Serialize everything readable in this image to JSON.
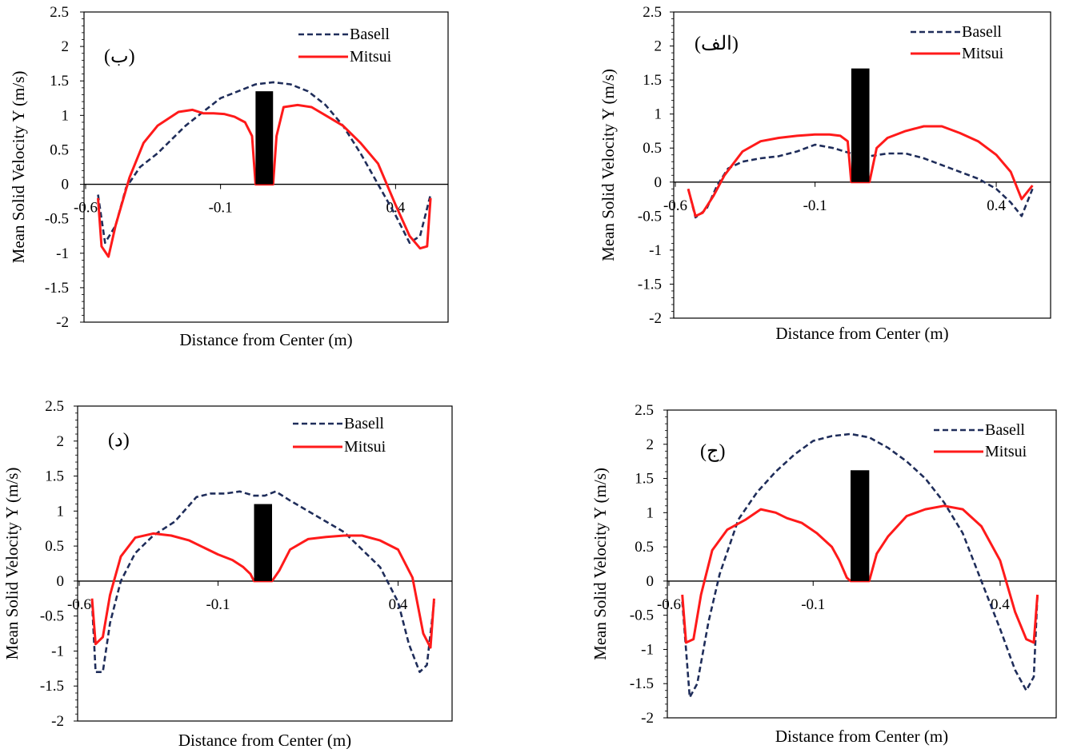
{
  "chart_data": [
    {
      "type": "line",
      "panel_label": "(ب)",
      "xlabel": "Distance from Center (m)",
      "ylabel": "Mean Solid Velocity Y (m/s)",
      "ylim": [
        -2,
        2.5
      ],
      "yticks": [
        "2.5",
        "2",
        "1.5",
        "1",
        "0.5",
        "0",
        "-0.5",
        "-1",
        "-1.5",
        "-2"
      ],
      "xlim": [
        -0.49,
        0.55
      ],
      "xticks": [
        {
          "v": -0.6,
          "label": "-0.6"
        },
        {
          "v": -0.1,
          "label": "-0.1"
        },
        {
          "v": 0.4,
          "label": "0.4"
        }
      ],
      "legend_position": "top-right",
      "bar": {
        "x0": 0.0,
        "x1": 0.05,
        "height": 1.35
      },
      "series": [
        {
          "name": "Basell",
          "color": "#1f2d5a",
          "dash": true,
          "x": [
            -0.45,
            -0.43,
            -0.4,
            -0.37,
            -0.33,
            -0.28,
            -0.2,
            -0.15,
            -0.1,
            -0.05,
            0.0,
            0.05,
            0.1,
            0.15,
            0.2,
            0.25,
            0.3,
            0.35,
            0.4,
            0.44,
            0.47,
            0.5
          ],
          "y": [
            -0.15,
            -0.85,
            -0.6,
            -0.05,
            0.25,
            0.45,
            0.85,
            1.05,
            1.25,
            1.35,
            1.45,
            1.48,
            1.45,
            1.35,
            1.15,
            0.85,
            0.45,
            0.0,
            -0.45,
            -0.85,
            -0.75,
            -0.15
          ]
        },
        {
          "name": "Mitsui",
          "color": "#ff1a1a",
          "dash": false,
          "x": [
            -0.45,
            -0.44,
            -0.42,
            -0.4,
            -0.36,
            -0.32,
            -0.28,
            -0.22,
            -0.18,
            -0.15,
            -0.12,
            -0.09,
            -0.06,
            -0.03,
            -0.01,
            0.0,
            0.01,
            0.04,
            0.05,
            0.06,
            0.08,
            0.12,
            0.16,
            0.2,
            0.25,
            0.3,
            0.35,
            0.4,
            0.44,
            0.47,
            0.49,
            0.5
          ],
          "y": [
            -0.2,
            -0.9,
            -1.05,
            -0.6,
            0.1,
            0.6,
            0.85,
            1.05,
            1.08,
            1.03,
            1.03,
            1.02,
            0.98,
            0.9,
            0.7,
            0.0,
            0.0,
            0.0,
            0.0,
            0.7,
            1.12,
            1.15,
            1.12,
            1.0,
            0.85,
            0.6,
            0.3,
            -0.3,
            -0.75,
            -0.93,
            -0.9,
            -0.2
          ]
        }
      ]
    },
    {
      "type": "line",
      "panel_label": "(الف)",
      "xlabel": "Distance from Center (m)",
      "ylabel": "Mean Solid Velocity Y (m/s)",
      "ylim": [
        -2,
        2.5
      ],
      "yticks": [
        "2.5",
        "2",
        "1.5",
        "1",
        "0.5",
        "0",
        "-0.5",
        "-1",
        "-1.5",
        "-2"
      ],
      "xlim": [
        -0.49,
        0.55
      ],
      "xticks": [
        {
          "v": -0.6,
          "label": "-0.6"
        },
        {
          "v": -0.1,
          "label": "-0.1"
        },
        {
          "v": 0.4,
          "label": "0.4"
        }
      ],
      "legend_position": "top-right",
      "bar": {
        "x0": 0.0,
        "x1": 0.05,
        "height": 1.67
      },
      "series": [
        {
          "name": "Basell",
          "color": "#1f2d5a",
          "dash": true,
          "x": [
            -0.45,
            -0.43,
            -0.4,
            -0.37,
            -0.34,
            -0.3,
            -0.25,
            -0.2,
            -0.15,
            -0.1,
            -0.05,
            0.0,
            0.05,
            0.1,
            0.15,
            0.2,
            0.25,
            0.3,
            0.35,
            0.4,
            0.44,
            0.47,
            0.5
          ],
          "y": [
            -0.1,
            -0.52,
            -0.4,
            -0.05,
            0.2,
            0.3,
            0.35,
            0.38,
            0.45,
            0.55,
            0.5,
            0.42,
            0.38,
            0.42,
            0.42,
            0.35,
            0.25,
            0.15,
            0.05,
            -0.1,
            -0.3,
            -0.5,
            -0.1
          ]
        },
        {
          "name": "Mitsui",
          "color": "#ff1a1a",
          "dash": false,
          "x": [
            -0.45,
            -0.43,
            -0.41,
            -0.38,
            -0.35,
            -0.3,
            -0.25,
            -0.2,
            -0.15,
            -0.1,
            -0.06,
            -0.03,
            -0.01,
            0.0,
            0.02,
            0.04,
            0.05,
            0.07,
            0.1,
            0.15,
            0.2,
            0.25,
            0.3,
            0.35,
            0.4,
            0.44,
            0.47,
            0.5
          ],
          "y": [
            -0.1,
            -0.5,
            -0.45,
            -0.2,
            0.1,
            0.45,
            0.6,
            0.65,
            0.68,
            0.7,
            0.7,
            0.68,
            0.6,
            0.0,
            0.0,
            0.0,
            0.0,
            0.5,
            0.65,
            0.75,
            0.82,
            0.82,
            0.72,
            0.6,
            0.4,
            0.15,
            -0.25,
            -0.05
          ]
        }
      ]
    },
    {
      "type": "line",
      "panel_label": "(د)",
      "xlabel": "Distance from Center (m)",
      "ylabel": "Mean Solid Velocity Y (m/s)",
      "ylim": [
        -2,
        2.5
      ],
      "yticks": [
        "2.5",
        "2",
        "1.5",
        "1",
        "0.5",
        "0",
        "-0.5",
        "-1",
        "-1.5",
        "-2"
      ],
      "xlim": [
        -0.49,
        0.55
      ],
      "xticks": [
        {
          "v": -0.6,
          "label": "-0.6"
        },
        {
          "v": -0.1,
          "label": "-0.1"
        },
        {
          "v": 0.4,
          "label": "0.4"
        }
      ],
      "legend_position": "top-right",
      "bar": {
        "x0": 0.0,
        "x1": 0.05,
        "height": 1.1
      },
      "series": [
        {
          "name": "Basell",
          "color": "#1f2d5a",
          "dash": true,
          "x": [
            -0.45,
            -0.44,
            -0.42,
            -0.4,
            -0.37,
            -0.33,
            -0.28,
            -0.22,
            -0.16,
            -0.12,
            -0.08,
            -0.04,
            0.0,
            0.03,
            0.06,
            0.1,
            0.15,
            0.2,
            0.25,
            0.3,
            0.35,
            0.4,
            0.43,
            0.46,
            0.48,
            0.5
          ],
          "y": [
            -0.3,
            -1.3,
            -1.3,
            -0.6,
            0.0,
            0.4,
            0.65,
            0.85,
            1.2,
            1.25,
            1.25,
            1.28,
            1.22,
            1.22,
            1.28,
            1.15,
            1.0,
            0.85,
            0.7,
            0.45,
            0.2,
            -0.3,
            -0.9,
            -1.3,
            -1.2,
            -0.3
          ]
        },
        {
          "name": "Mitsui",
          "color": "#ff1a1a",
          "dash": false,
          "x": [
            -0.45,
            -0.44,
            -0.42,
            -0.4,
            -0.37,
            -0.33,
            -0.28,
            -0.23,
            -0.18,
            -0.14,
            -0.1,
            -0.06,
            -0.03,
            -0.01,
            0.0,
            0.03,
            0.05,
            0.07,
            0.1,
            0.15,
            0.2,
            0.25,
            0.3,
            0.35,
            0.4,
            0.44,
            0.47,
            0.49,
            0.5
          ],
          "y": [
            -0.25,
            -0.9,
            -0.8,
            -0.2,
            0.35,
            0.62,
            0.68,
            0.65,
            0.58,
            0.48,
            0.38,
            0.3,
            0.2,
            0.1,
            0.0,
            0.0,
            0.0,
            0.15,
            0.45,
            0.6,
            0.63,
            0.65,
            0.65,
            0.58,
            0.45,
            0.05,
            -0.75,
            -0.95,
            -0.25
          ]
        }
      ]
    },
    {
      "type": "line",
      "panel_label": "(ج)",
      "xlabel": "Distance from Center (m)",
      "ylabel": "Mean Solid Velocity Y (m/s)",
      "ylim": [
        -2,
        2.5
      ],
      "yticks": [
        "2.5",
        "2",
        "1.5",
        "1",
        "0.5",
        "0",
        "-0.5",
        "-1",
        "-1.5",
        "-2"
      ],
      "xlim": [
        -0.49,
        0.55
      ],
      "xticks": [
        {
          "v": -0.6,
          "label": "-0.6"
        },
        {
          "v": -0.1,
          "label": "-0.1"
        },
        {
          "v": 0.4,
          "label": "0.4"
        }
      ],
      "legend_position": "top-right",
      "bar": {
        "x0": 0.0,
        "x1": 0.05,
        "height": 1.62
      },
      "series": [
        {
          "name": "Basell",
          "color": "#1f2d5a",
          "dash": true,
          "x": [
            -0.45,
            -0.43,
            -0.41,
            -0.38,
            -0.35,
            -0.3,
            -0.25,
            -0.2,
            -0.15,
            -0.1,
            -0.05,
            0.0,
            0.05,
            0.1,
            0.15,
            0.2,
            0.25,
            0.3,
            0.35,
            0.4,
            0.44,
            0.47,
            0.49,
            0.5
          ],
          "y": [
            -0.3,
            -1.7,
            -1.5,
            -0.6,
            0.1,
            0.9,
            1.3,
            1.6,
            1.85,
            2.05,
            2.12,
            2.15,
            2.1,
            1.95,
            1.75,
            1.5,
            1.15,
            0.7,
            0.0,
            -0.7,
            -1.3,
            -1.6,
            -1.4,
            -0.2
          ]
        },
        {
          "name": "Mitsui",
          "color": "#ff1a1a",
          "dash": false,
          "x": [
            -0.45,
            -0.44,
            -0.42,
            -0.4,
            -0.37,
            -0.33,
            -0.28,
            -0.24,
            -0.2,
            -0.17,
            -0.13,
            -0.09,
            -0.05,
            -0.03,
            -0.01,
            0.0,
            0.03,
            0.05,
            0.07,
            0.1,
            0.15,
            0.2,
            0.25,
            0.3,
            0.35,
            0.4,
            0.44,
            0.47,
            0.49,
            0.5
          ],
          "y": [
            -0.2,
            -0.9,
            -0.85,
            -0.2,
            0.45,
            0.75,
            0.9,
            1.05,
            1.0,
            0.92,
            0.85,
            0.7,
            0.5,
            0.3,
            0.05,
            0.0,
            0.0,
            0.0,
            0.4,
            0.65,
            0.95,
            1.05,
            1.1,
            1.05,
            0.8,
            0.3,
            -0.45,
            -0.85,
            -0.9,
            -0.2
          ]
        }
      ]
    }
  ]
}
